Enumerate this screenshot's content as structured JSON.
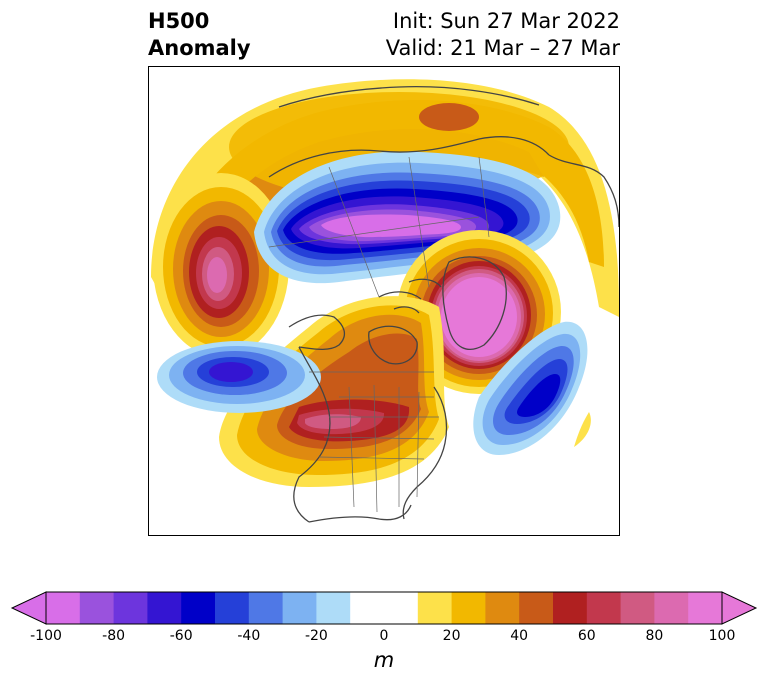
{
  "title": {
    "left_line1": "H500",
    "left_line2": "Anomaly",
    "right_line1": "Init: Sun 27 Mar 2022",
    "right_line2": "Valid: 21 Mar – 27 Mar"
  },
  "colorbar": {
    "unit": "m",
    "ticks": [
      "-100",
      "-80",
      "-60",
      "-40",
      "-20",
      "0",
      "20",
      "40",
      "60",
      "80",
      "100"
    ],
    "colors": [
      "#d86ee8",
      "#9a52dd",
      "#6d35dd",
      "#3415d2",
      "#0000c8",
      "#2540d8",
      "#4f78e6",
      "#7db2f2",
      "#aedcf8",
      "#ffffff",
      "#ffffff",
      "#fde14a",
      "#f2b800",
      "#df8a10",
      "#c85a18",
      "#b02020",
      "#c2384d",
      "#d05a82",
      "#dc6ab0",
      "#e678d8"
    ],
    "arrow_left_color": "#d86ee8",
    "arrow_right_color": "#e678d8"
  },
  "map": {
    "projection": "north polar stereographic",
    "region": "Northern Hemisphere / North America",
    "features": [
      "coastlines",
      "country borders",
      "US state borders"
    ]
  }
}
